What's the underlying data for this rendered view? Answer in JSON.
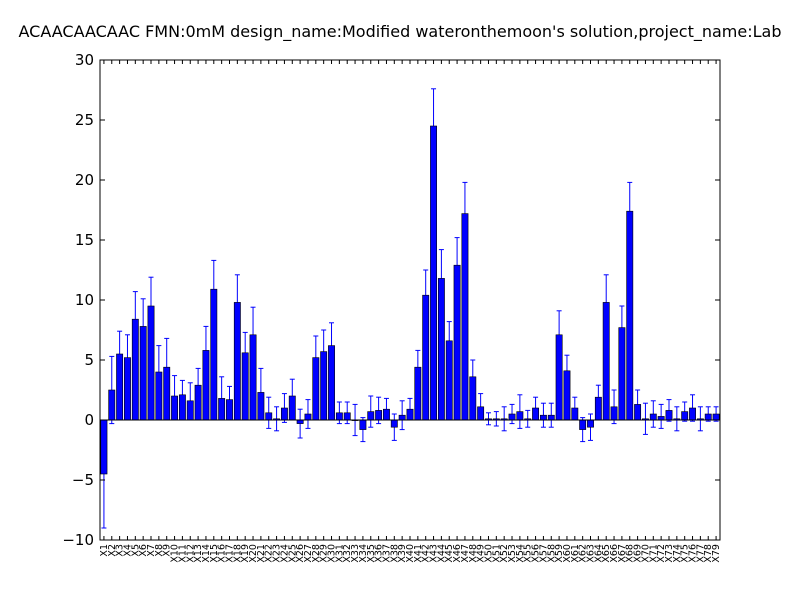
{
  "chart_data": {
    "type": "bar",
    "title": "ACAACAACAAC  FMN:0mM  design_name:Modified wateronthemoon's solution,project_name:Lab",
    "xlabel": "",
    "ylabel": "",
    "ylim": [
      -10,
      30
    ],
    "yticks": [
      "−10",
      "−5",
      "0",
      "5",
      "10",
      "15",
      "20",
      "25",
      "30"
    ],
    "grid": false,
    "bar_color": "#0000ff",
    "error_color": "#0000ff",
    "categories": [
      "X1",
      "X2",
      "X3",
      "X4",
      "X5",
      "X6",
      "X7",
      "X8",
      "X9",
      "X10",
      "X11",
      "X12",
      "X13",
      "X14",
      "X15",
      "X16",
      "X17",
      "X18",
      "X19",
      "X20",
      "X21",
      "X22",
      "X23",
      "X24",
      "X25",
      "X26",
      "X27",
      "X28",
      "X29",
      "X30",
      "X31",
      "X32",
      "X33",
      "X34",
      "X35",
      "X36",
      "X37",
      "X38",
      "X39",
      "X40",
      "X41",
      "X42",
      "X43",
      "X44",
      "X45",
      "X46",
      "X47",
      "X48",
      "X49",
      "X50",
      "X51",
      "X52",
      "X53",
      "X54",
      "X55",
      "X56",
      "X57",
      "X58",
      "X59",
      "X60",
      "X61",
      "X62",
      "X63",
      "X64",
      "X65",
      "X66",
      "X67",
      "X68",
      "X69",
      "X70",
      "X71",
      "X72",
      "X73",
      "X74",
      "X75",
      "X76",
      "X77",
      "X78",
      "X79"
    ],
    "values": [
      -4.5,
      2.5,
      5.5,
      5.2,
      8.4,
      7.8,
      9.5,
      4.0,
      4.4,
      2.0,
      2.1,
      1.6,
      2.9,
      5.8,
      10.9,
      1.8,
      1.7,
      9.8,
      5.6,
      7.1,
      2.3,
      0.6,
      0.1,
      1.0,
      2.0,
      -0.3,
      0.5,
      5.2,
      5.7,
      6.2,
      0.6,
      0.6,
      0.0,
      -0.8,
      0.7,
      0.8,
      0.9,
      -0.6,
      0.4,
      0.9,
      4.4,
      10.4,
      24.5,
      11.8,
      6.6,
      12.9,
      17.2,
      3.6,
      1.1,
      0.1,
      0.1,
      0.1,
      0.5,
      0.7,
      0.1,
      1.0,
      0.4,
      0.4,
      7.1,
      4.1,
      1.0,
      -0.8,
      -0.6,
      1.9,
      9.8,
      1.1,
      7.7,
      17.4,
      1.3,
      0.1,
      0.5,
      0.3,
      0.8,
      0.1,
      0.7,
      1.0,
      0.1,
      0.5,
      0.5
    ],
    "errors": [
      4.5,
      2.8,
      1.9,
      1.9,
      2.3,
      2.3,
      2.4,
      2.2,
      2.4,
      1.7,
      1.2,
      1.5,
      1.4,
      2.0,
      2.4,
      1.8,
      1.1,
      2.3,
      1.7,
      2.3,
      2.0,
      1.3,
      1.0,
      1.2,
      1.4,
      1.2,
      1.2,
      1.8,
      1.8,
      1.9,
      0.9,
      0.9,
      1.3,
      1.0,
      1.3,
      1.1,
      0.9,
      1.1,
      1.2,
      0.9,
      1.4,
      2.1,
      3.1,
      2.4,
      1.6,
      2.3,
      2.6,
      1.4,
      1.1,
      0.5,
      0.6,
      1.0,
      0.8,
      1.4,
      0.7,
      0.9,
      1.0,
      1.0,
      2.0,
      1.3,
      0.9,
      1.0,
      1.1,
      1.0,
      2.3,
      1.4,
      1.8,
      2.4,
      1.2,
      1.3,
      1.1,
      1.0,
      0.9,
      1.0,
      0.8,
      1.1,
      1.0,
      0.6,
      0.6
    ]
  }
}
